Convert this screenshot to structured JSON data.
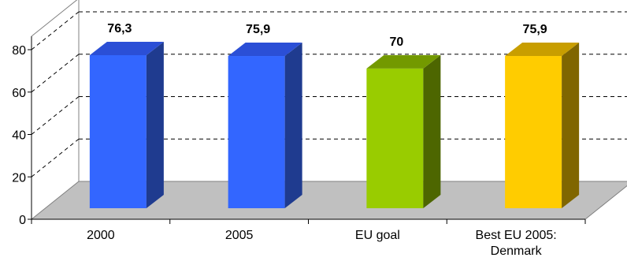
{
  "chart_data": {
    "type": "bar",
    "style": "3d",
    "categories": [
      "2000",
      "2005",
      "EU goal",
      "Best EU 2005: Denmark"
    ],
    "category_lines": [
      [
        "2000"
      ],
      [
        "2005"
      ],
      [
        "EU goal"
      ],
      [
        "Best EU 2005:",
        "Denmark"
      ]
    ],
    "values": [
      76.3,
      75.9,
      70,
      75.9
    ],
    "data_labels": [
      "76,3",
      "75,9",
      "70",
      "75,9"
    ],
    "bar_colors": [
      {
        "front": "#3366ff",
        "side": "#1f3b8f",
        "top": "#2b4fd6"
      },
      {
        "front": "#3366ff",
        "side": "#1f3b8f",
        "top": "#2b4fd6"
      },
      {
        "front": "#99cc00",
        "side": "#4d6600",
        "top": "#739900"
      },
      {
        "front": "#ffcc00",
        "side": "#806600",
        "top": "#c89e00"
      }
    ],
    "floor_color": "#c0c0c0",
    "ylim": [
      0,
      80
    ],
    "yticks": [
      0,
      20,
      40,
      60,
      80
    ],
    "title": "",
    "xlabel": "",
    "ylabel": "",
    "grid": true,
    "legend": "none"
  }
}
